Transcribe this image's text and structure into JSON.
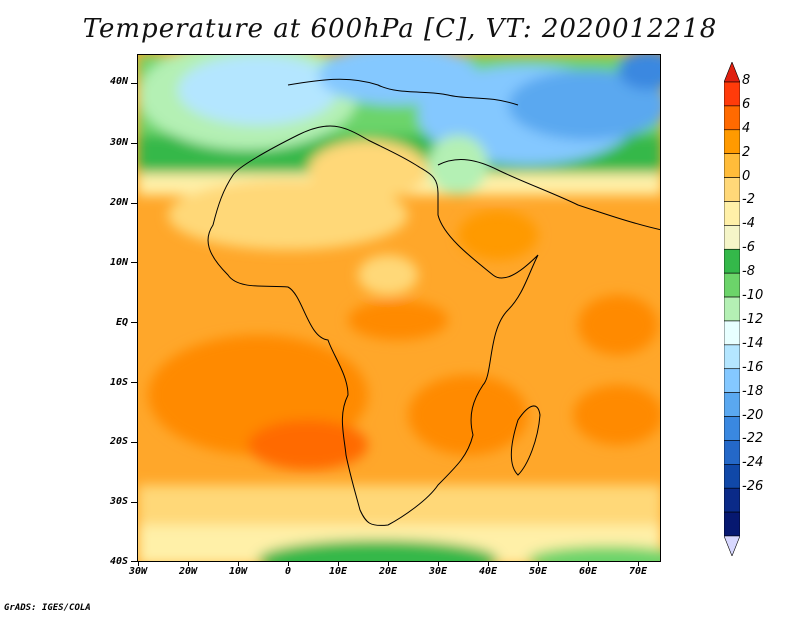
{
  "title": "Temperature at 600hPa [C], VT: 2020012218",
  "credit": "GrADS: IGES/COLA",
  "map": {
    "lat_labels": [
      "40N",
      "30N",
      "20N",
      "10N",
      "EQ",
      "10S",
      "20S",
      "30S",
      "40S"
    ],
    "lon_labels": [
      "30W",
      "20W",
      "10W",
      "0",
      "10E",
      "20E",
      "30E",
      "40E",
      "50E",
      "60E",
      "70E"
    ]
  },
  "colorbar": {
    "labels": [
      "8",
      "6",
      "4",
      "2",
      "0",
      "-2",
      "-4",
      "-6",
      "-8",
      "-10",
      "-12",
      "-14",
      "-16",
      "-18",
      "-20",
      "-22",
      "-24",
      "-26"
    ],
    "colors": [
      "#ff3b0a",
      "#ff6a00",
      "#ff9a00",
      "#ffbc3a",
      "#ffd878",
      "#fff0a8",
      "#f5f5c8",
      "#34b84a",
      "#6cd46a",
      "#b4f0b4",
      "#e8ffff",
      "#b4e6ff",
      "#84c8ff",
      "#5aa8f0",
      "#3a88e0",
      "#2468c8",
      "#1048a8",
      "#0a2a88",
      "#061870"
    ],
    "top_color": "#e02010",
    "bottom_color": "#d8d8ff"
  }
}
